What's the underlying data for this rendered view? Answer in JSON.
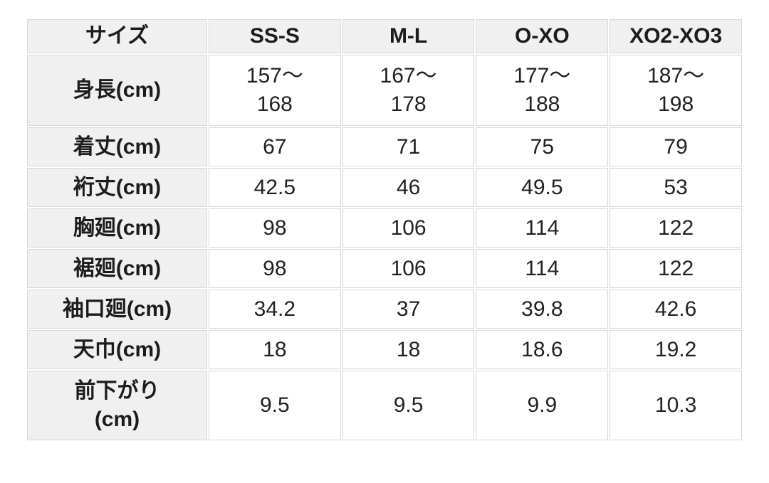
{
  "colors": {
    "header_bg": "#f0f0f0",
    "cell_bg": "#ffffff",
    "border": "#d7d7d7",
    "text": "#1e1e1e",
    "page_bg": "#ffffff"
  },
  "table": {
    "header": [
      "サイズ",
      "SS-S",
      "M-L",
      "O-XO",
      "XO2-XO3"
    ],
    "rows": [
      {
        "label": "身長(cm)",
        "values": [
          "157〜\n168",
          "167〜\n178",
          "177〜\n188",
          "187〜\n198"
        ]
      },
      {
        "label": "着丈(cm)",
        "values": [
          "67",
          "71",
          "75",
          "79"
        ]
      },
      {
        "label": "裄丈(cm)",
        "values": [
          "42.5",
          "46",
          "49.5",
          "53"
        ]
      },
      {
        "label": "胸廻(cm)",
        "values": [
          "98",
          "106",
          "114",
          "122"
        ]
      },
      {
        "label": "裾廻(cm)",
        "values": [
          "98",
          "106",
          "114",
          "122"
        ]
      },
      {
        "label": "袖口廻(cm)",
        "values": [
          "34.2",
          "37",
          "39.8",
          "42.6"
        ]
      },
      {
        "label": "天巾(cm)",
        "values": [
          "18",
          "18",
          "18.6",
          "19.2"
        ]
      },
      {
        "label": "前下がり\n(cm)",
        "values": [
          "9.5",
          "9.5",
          "9.9",
          "10.3"
        ]
      }
    ]
  },
  "chart_data": {
    "type": "table",
    "columns": [
      "サイズ",
      "SS-S",
      "M-L",
      "O-XO",
      "XO2-XO3"
    ],
    "rows": [
      [
        "身長(cm)",
        "157〜168",
        "167〜178",
        "177〜188",
        "187〜198"
      ],
      [
        "着丈(cm)",
        "67",
        "71",
        "75",
        "79"
      ],
      [
        "裄丈(cm)",
        "42.5",
        "46",
        "49.5",
        "53"
      ],
      [
        "胸廻(cm)",
        "98",
        "106",
        "114",
        "122"
      ],
      [
        "裾廻(cm)",
        "98",
        "106",
        "114",
        "122"
      ],
      [
        "袖口廻(cm)",
        "34.2",
        "37",
        "39.8",
        "42.6"
      ],
      [
        "天巾(cm)",
        "18",
        "18",
        "18.6",
        "19.2"
      ],
      [
        "前下がり(cm)",
        "9.5",
        "9.5",
        "9.9",
        "10.3"
      ]
    ]
  }
}
